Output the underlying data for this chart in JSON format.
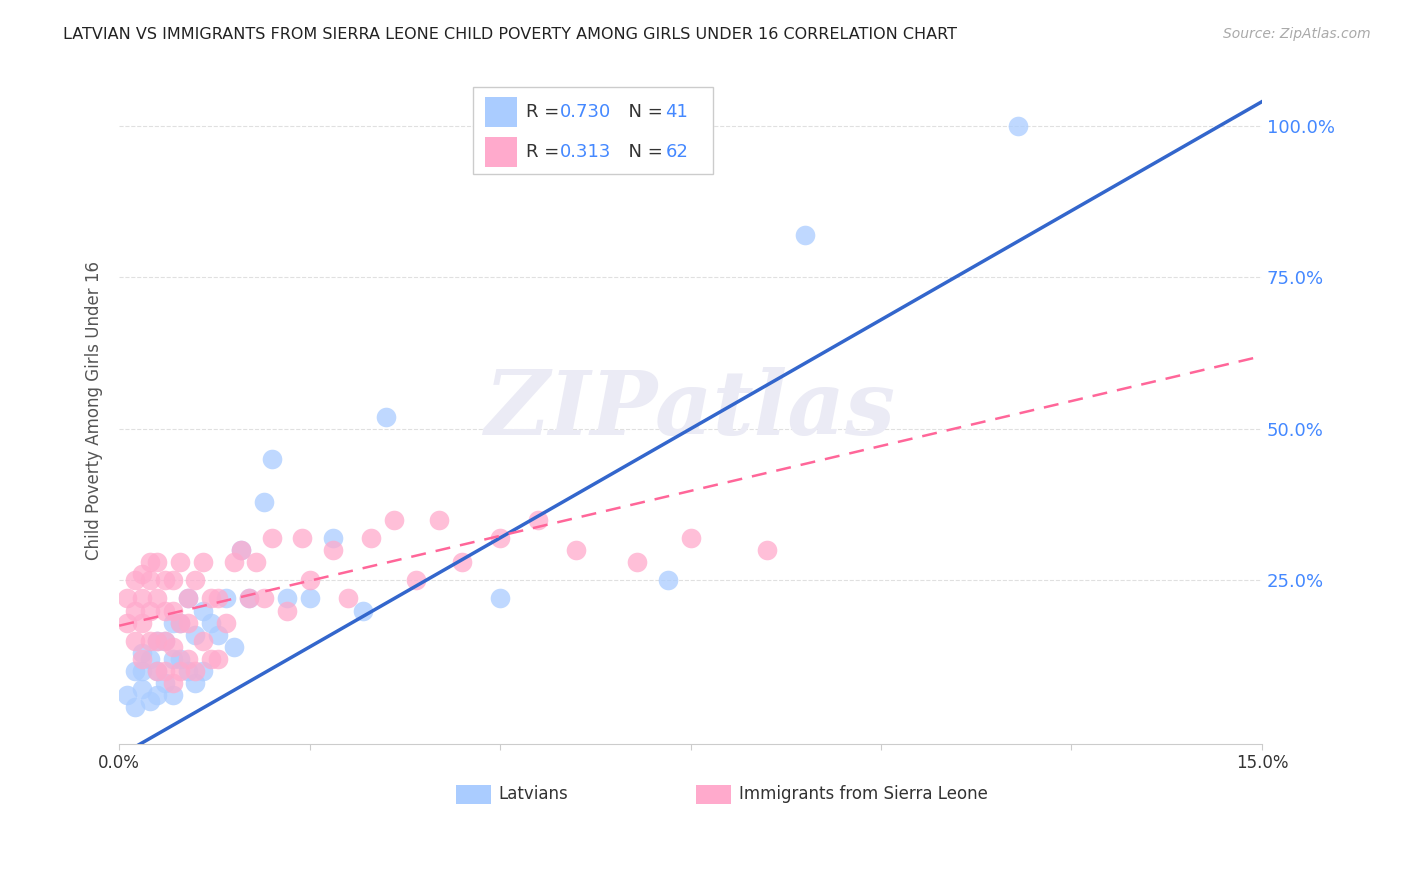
{
  "title": "LATVIAN VS IMMIGRANTS FROM SIERRA LEONE CHILD POVERTY AMONG GIRLS UNDER 16 CORRELATION CHART",
  "source": "Source: ZipAtlas.com",
  "ylabel": "Child Poverty Among Girls Under 16",
  "xlim": [
    0.0,
    0.15
  ],
  "ylim": [
    -0.02,
    1.08
  ],
  "ytick_labels": [
    "25.0%",
    "50.0%",
    "75.0%",
    "100.0%"
  ],
  "ytick_positions": [
    0.25,
    0.5,
    0.75,
    1.0
  ],
  "background_color": "#ffffff",
  "grid_color": "#e0e0e0",
  "watermark": "ZIPatlas",
  "latvian_color": "#aaccff",
  "sierra_leone_color": "#ffaacc",
  "latvian_line_color": "#3366cc",
  "sierra_leone_line_color": "#ff6699",
  "legend_R_latvian": "0.730",
  "legend_N_latvian": "41",
  "legend_R_sierra": "0.313",
  "legend_N_sierra": "62",
  "latvian_scatter_x": [
    0.001,
    0.002,
    0.002,
    0.003,
    0.003,
    0.003,
    0.004,
    0.004,
    0.005,
    0.005,
    0.005,
    0.006,
    0.006,
    0.007,
    0.007,
    0.007,
    0.008,
    0.008,
    0.009,
    0.009,
    0.01,
    0.01,
    0.011,
    0.011,
    0.012,
    0.013,
    0.014,
    0.015,
    0.016,
    0.017,
    0.019,
    0.02,
    0.022,
    0.025,
    0.028,
    0.032,
    0.035,
    0.05,
    0.072,
    0.09,
    0.118
  ],
  "latvian_scatter_y": [
    0.06,
    0.04,
    0.1,
    0.07,
    0.1,
    0.13,
    0.05,
    0.12,
    0.06,
    0.1,
    0.15,
    0.08,
    0.15,
    0.06,
    0.12,
    0.18,
    0.12,
    0.18,
    0.1,
    0.22,
    0.08,
    0.16,
    0.1,
    0.2,
    0.18,
    0.16,
    0.22,
    0.14,
    0.3,
    0.22,
    0.38,
    0.45,
    0.22,
    0.22,
    0.32,
    0.2,
    0.52,
    0.22,
    0.25,
    0.82,
    1.0
  ],
  "sierra_leone_scatter_x": [
    0.001,
    0.001,
    0.002,
    0.002,
    0.002,
    0.003,
    0.003,
    0.003,
    0.003,
    0.004,
    0.004,
    0.004,
    0.004,
    0.005,
    0.005,
    0.005,
    0.005,
    0.006,
    0.006,
    0.006,
    0.006,
    0.007,
    0.007,
    0.007,
    0.007,
    0.008,
    0.008,
    0.008,
    0.009,
    0.009,
    0.009,
    0.01,
    0.01,
    0.011,
    0.011,
    0.012,
    0.012,
    0.013,
    0.013,
    0.014,
    0.015,
    0.016,
    0.017,
    0.018,
    0.019,
    0.02,
    0.022,
    0.024,
    0.025,
    0.028,
    0.03,
    0.033,
    0.036,
    0.039,
    0.042,
    0.045,
    0.05,
    0.055,
    0.06,
    0.068,
    0.075,
    0.085
  ],
  "sierra_leone_scatter_y": [
    0.18,
    0.22,
    0.15,
    0.2,
    0.25,
    0.12,
    0.18,
    0.22,
    0.26,
    0.15,
    0.2,
    0.25,
    0.28,
    0.1,
    0.15,
    0.22,
    0.28,
    0.1,
    0.15,
    0.2,
    0.25,
    0.08,
    0.14,
    0.2,
    0.25,
    0.1,
    0.18,
    0.28,
    0.12,
    0.18,
    0.22,
    0.1,
    0.25,
    0.15,
    0.28,
    0.12,
    0.22,
    0.12,
    0.22,
    0.18,
    0.28,
    0.3,
    0.22,
    0.28,
    0.22,
    0.32,
    0.2,
    0.32,
    0.25,
    0.3,
    0.22,
    0.32,
    0.35,
    0.25,
    0.35,
    0.28,
    0.32,
    0.35,
    0.3,
    0.28,
    0.32,
    0.3
  ],
  "latvian_line_x": [
    0.0,
    0.15
  ],
  "latvian_line_y": [
    -0.04,
    1.04
  ],
  "sierra_line_x": [
    0.0,
    0.15
  ],
  "sierra_line_y": [
    0.175,
    0.62
  ]
}
